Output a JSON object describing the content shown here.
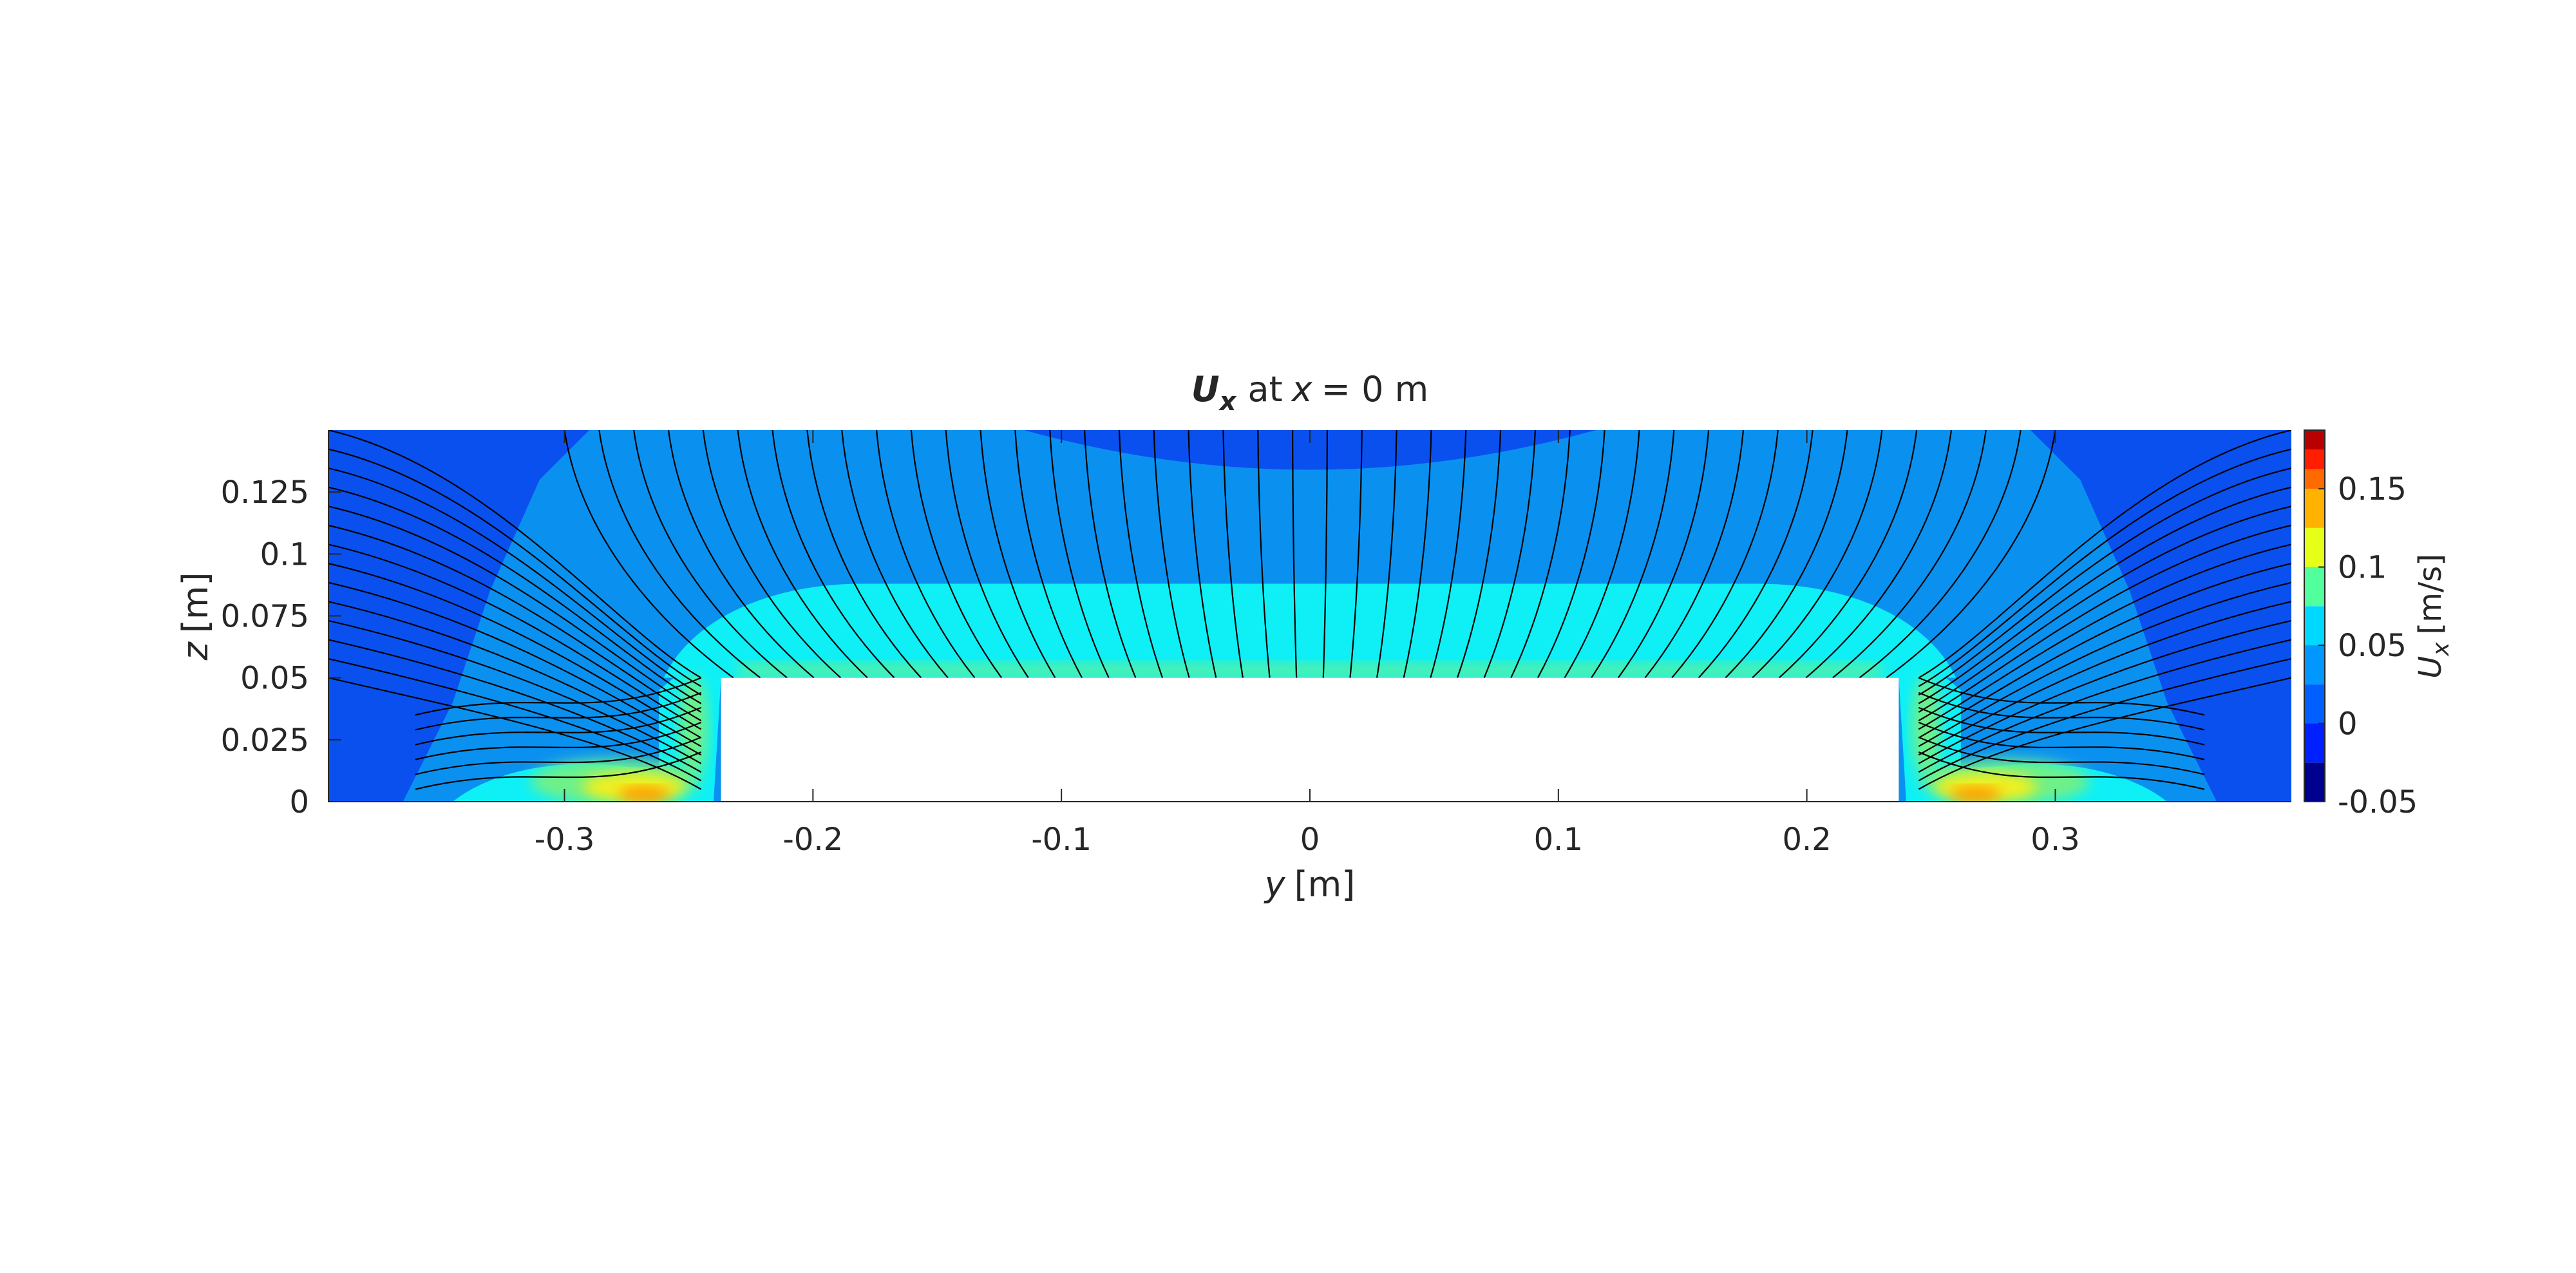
{
  "chart_data": {
    "type": "heatmap",
    "title": {
      "symbol": "U",
      "subscript": "x",
      "text_at": "at",
      "variable": "x",
      "text_rest": "= 0 m"
    },
    "xlabel": {
      "variable": "y",
      "unit": "[m]"
    },
    "ylabel": {
      "variable": "z",
      "unit": "[m]"
    },
    "xlim": [
      -0.395,
      0.395
    ],
    "ylim": [
      0,
      0.15
    ],
    "x_ticks": [
      -0.3,
      -0.2,
      -0.1,
      0,
      0.1,
      0.2,
      0.3
    ],
    "x_tick_labels": [
      "-0.3",
      "-0.2",
      "-0.1",
      "0",
      "0.1",
      "0.2",
      "0.3"
    ],
    "y_ticks": [
      0,
      0.025,
      0.05,
      0.075,
      0.1,
      0.125
    ],
    "y_tick_labels": [
      "0",
      "0.025",
      "0.05",
      "0.075",
      "0.1",
      "0.125"
    ],
    "obstacle": {
      "y_range": [
        -0.237,
        0.237
      ],
      "z_range": [
        0,
        0.05
      ]
    },
    "colorbar": {
      "label": {
        "symbol": "U",
        "subscript": "x",
        "unit": "[m/s]"
      },
      "range": [
        -0.05,
        0.1875
      ],
      "levels": [
        -0.05,
        -0.025,
        0,
        0.025,
        0.05,
        0.075,
        0.1,
        0.125,
        0.15,
        0.1625,
        0.175,
        0.1875
      ],
      "colors": [
        "#00008f",
        "#0020ff",
        "#0060ff",
        "#0098ff",
        "#00d8ff",
        "#52ff9d",
        "#e6ff19",
        "#ffb300",
        "#ff6a00",
        "#ff1e00",
        "#b90000"
      ],
      "ticks": [
        -0.05,
        0,
        0.05,
        0.1,
        0.15
      ],
      "tick_labels": [
        "-0.05",
        "0",
        "0.05",
        "0.1",
        "0.15"
      ]
    },
    "field_colors": {
      "deep_blue": "#0a50ef",
      "mid_blue": "#0a91f0",
      "cyan": "#0ef0f6",
      "green": "#6ff088",
      "yellow": "#f3f01a",
      "orange": "#ff9a00"
    },
    "streamline_color": "#000000",
    "grid": false
  }
}
